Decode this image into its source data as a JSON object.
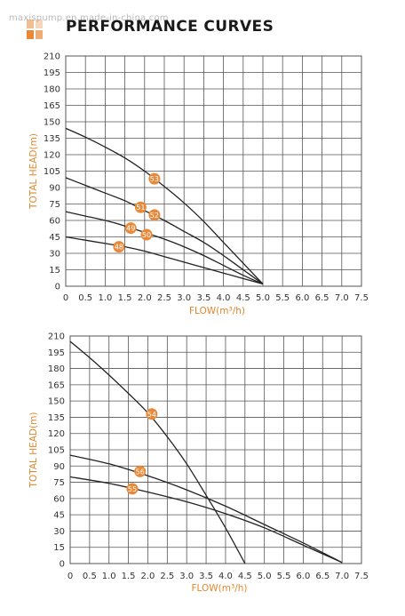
{
  "watermark": "maxispump.en.made-in-china.com",
  "title": "PERFORMANCE CURVES",
  "colors": {
    "accent": "#e0882c",
    "badge": "#e8893a",
    "grid": "#555555",
    "curve": "#222222"
  },
  "chart_data": [
    {
      "type": "line",
      "xlabel": "FLOW(m³/h)",
      "ylabel": "TOTAL HEAD(m)",
      "xlim": [
        0,
        7.5
      ],
      "ylim": [
        0,
        210
      ],
      "xticks": [
        0,
        0.5,
        1,
        1.5,
        2,
        2.5,
        3,
        3.5,
        4,
        4.5,
        5,
        5.5,
        6,
        6.5,
        7,
        7.5
      ],
      "xtick_labels": [
        "0",
        "0.5",
        "1.0",
        "1.5",
        "2.0",
        "2.5",
        "3.0",
        "3.5",
        "4.0",
        "4.5",
        "5.0",
        "5.5",
        "6.0",
        "6.5",
        "7.0",
        "7.5"
      ],
      "yticks": [
        0,
        15,
        30,
        45,
        60,
        75,
        90,
        105,
        120,
        135,
        150,
        165,
        180,
        195,
        210
      ],
      "grid": true,
      "series": [
        {
          "name": "53",
          "x": [
            0,
            0.5,
            1,
            1.5,
            2,
            2.5,
            3,
            3.5,
            4,
            4.5,
            5
          ],
          "y": [
            144,
            136,
            127,
            117,
            105,
            91,
            76,
            59,
            40,
            21,
            2
          ],
          "label_at": [
            2.25,
            98
          ]
        },
        {
          "name": "51",
          "x": [
            0,
            0.5,
            1,
            1.5,
            2,
            2.5,
            3,
            3.5,
            4,
            4.5,
            5
          ],
          "y": [
            99,
            92,
            85,
            78,
            69,
            60,
            50,
            40,
            28,
            15,
            2
          ],
          "label_at": [
            1.9,
            72
          ]
        },
        {
          "name": "52",
          "x": [
            0,
            0.5,
            1,
            1.5,
            2,
            2.5,
            3,
            3.5,
            4,
            4.5,
            5
          ],
          "y": [
            99,
            92,
            85,
            78,
            69,
            60,
            50,
            40,
            28,
            15,
            2
          ],
          "label_at": [
            2.25,
            65
          ]
        },
        {
          "name": "49",
          "x": [
            0,
            0.5,
            1,
            1.5,
            2,
            2.5,
            3,
            3.5,
            4,
            4.5,
            5
          ],
          "y": [
            68,
            64,
            60,
            55,
            49,
            43,
            36,
            28,
            19,
            10,
            2
          ],
          "label_at": [
            1.65,
            53
          ]
        },
        {
          "name": "50",
          "x": [
            0,
            0.5,
            1,
            1.5,
            2,
            2.5,
            3,
            3.5,
            4,
            4.5,
            5
          ],
          "y": [
            68,
            64,
            60,
            55,
            49,
            43,
            36,
            28,
            19,
            10,
            2
          ],
          "label_at": [
            2.05,
            47
          ]
        },
        {
          "name": "48",
          "x": [
            0,
            0.5,
            1,
            1.5,
            2,
            2.5,
            3,
            3.5,
            4,
            4.5,
            5
          ],
          "y": [
            45,
            42,
            39,
            36,
            32,
            27,
            22,
            17,
            12,
            7,
            2
          ],
          "label_at": [
            1.35,
            36
          ]
        }
      ]
    },
    {
      "type": "line",
      "xlabel": "FLOW(m³/h)",
      "ylabel": "TOTAL HEAD(m)",
      "xlim": [
        0,
        7.5
      ],
      "ylim": [
        0,
        210
      ],
      "xticks": [
        0,
        0.5,
        1,
        1.5,
        2,
        2.5,
        3,
        3.5,
        4,
        4.5,
        5,
        5.5,
        6,
        6.5,
        7,
        7.5
      ],
      "xtick_labels": [
        "0",
        "0.5",
        "1.0",
        "1.5",
        "2.0",
        "2.5",
        "3.0",
        "3.5",
        "4.0",
        "4.5",
        "5.0",
        "5.5",
        "6.0",
        "6.5",
        "7.0",
        "7.5"
      ],
      "yticks": [
        0,
        15,
        30,
        45,
        60,
        75,
        90,
        105,
        120,
        135,
        150,
        165,
        180,
        195,
        210
      ],
      "grid": true,
      "series": [
        {
          "name": "54",
          "x": [
            0,
            0.5,
            1,
            1.5,
            2,
            2.5,
            3,
            3.5,
            4,
            4.5
          ],
          "y": [
            205,
            190,
            174,
            157,
            139,
            117,
            92,
            63,
            33,
            0
          ],
          "label_at": [
            2.1,
            138
          ]
        },
        {
          "name": "56",
          "x": [
            0,
            1,
            2,
            3,
            4,
            5,
            6,
            7
          ],
          "y": [
            100,
            92,
            81,
            68,
            53,
            36,
            19,
            1
          ],
          "label_at": [
            1.8,
            85
          ]
        },
        {
          "name": "55",
          "x": [
            0,
            1,
            2,
            3,
            4,
            5,
            6,
            7
          ],
          "y": [
            80,
            74,
            66,
            57,
            46,
            33,
            17,
            1
          ],
          "label_at": [
            1.6,
            69
          ]
        }
      ]
    }
  ]
}
